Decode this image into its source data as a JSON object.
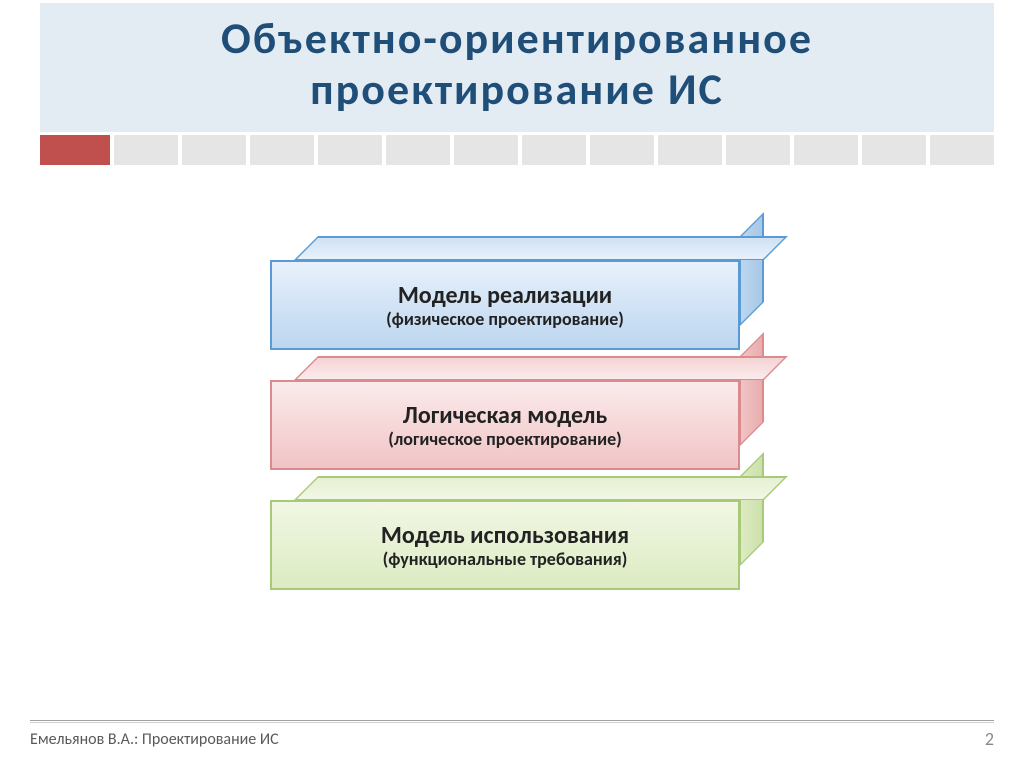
{
  "slide": {
    "title": "Объектно-ориентированное проектирование ИС",
    "title_color": "#1f4e79",
    "title_bg": "#e3ebf3",
    "title_fontsize": 44,
    "strip": {
      "count": 14,
      "red_index": 0,
      "cell_color": "#e5e5e5",
      "red_color": "#c0504d"
    },
    "layers": [
      {
        "title": "Модель реализации",
        "subtitle": "(физическое проектирование)",
        "front_bg_top": "#e8f1fb",
        "front_bg_bottom": "#bcd6ef",
        "top_bg": "#cfe2f3",
        "side_bg": "#a8c8e6",
        "border": "#5b9bd5"
      },
      {
        "title": "Логическая модель",
        "subtitle": "(логическое проектирование)",
        "front_bg_top": "#fbebec",
        "front_bg_bottom": "#f1c4c5",
        "top_bg": "#f4d3d4",
        "side_bg": "#e8adae",
        "border": "#d98b8d"
      },
      {
        "title": "Модель использования",
        "subtitle": "(функциональные требования)",
        "front_bg_top": "#f1f7e4",
        "front_bg_bottom": "#dcebc2",
        "top_bg": "#e6f0d2",
        "side_bg": "#cde0ab",
        "border": "#a8c97a"
      }
    ],
    "footer_author": "Емельянов В.А.:  Проектирование ИС",
    "page_number": "2",
    "layer_title_fontsize": 24,
    "layer_subtitle_fontsize": 18
  }
}
